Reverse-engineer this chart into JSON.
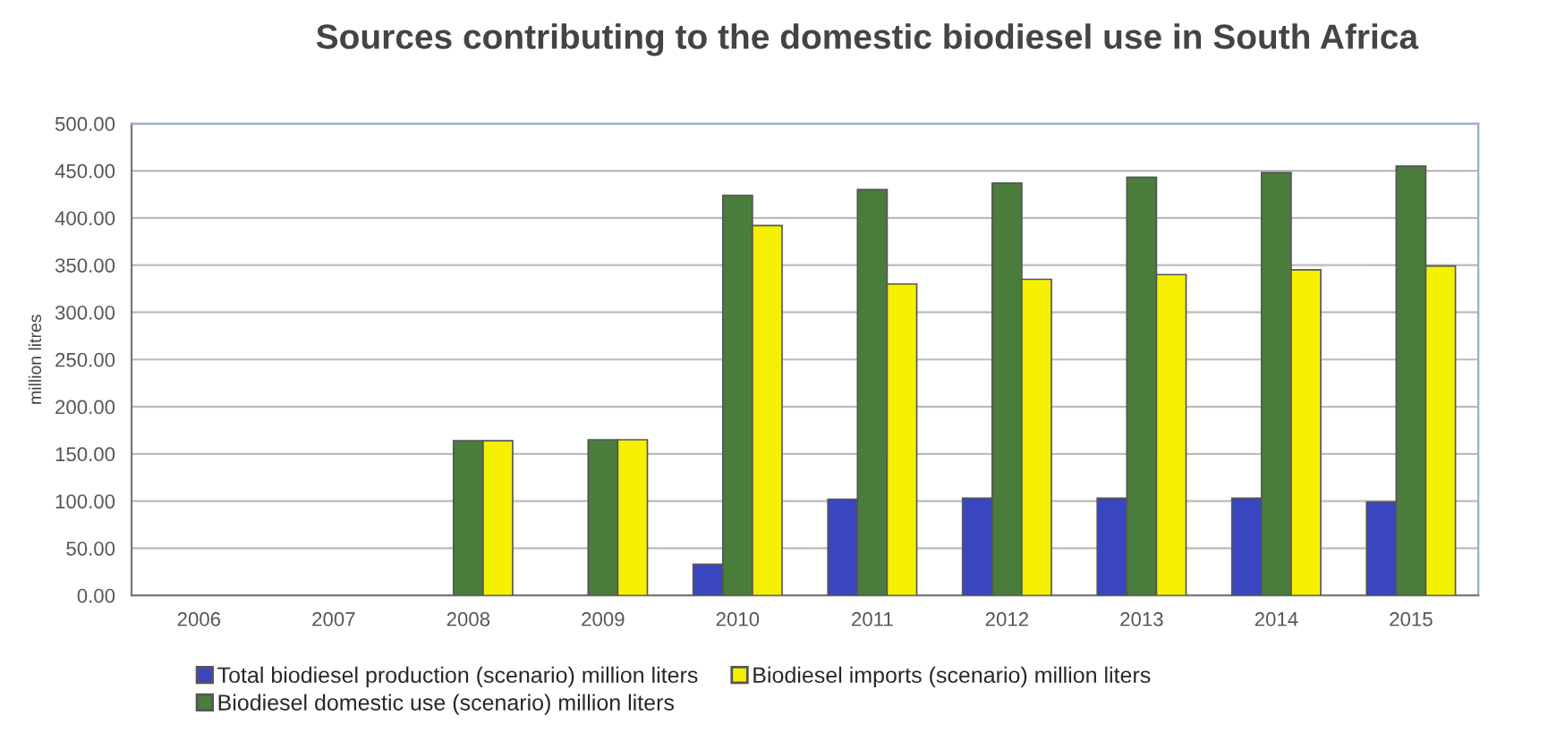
{
  "chart_data": {
    "type": "bar",
    "title": "Sources contributing to the domestic biodiesel use in South Africa",
    "ylabel": "million litres",
    "categories": [
      "2006",
      "2007",
      "2008",
      "2009",
      "2010",
      "2011",
      "2012",
      "2013",
      "2014",
      "2015"
    ],
    "series": [
      {
        "name": "Total biodiesel production (scenario) million liters",
        "color": "#3a46c0",
        "values": [
          null,
          null,
          null,
          null,
          33,
          102,
          103,
          103,
          103,
          99
        ]
      },
      {
        "name": "Biodiesel domestic use (scenario) million liters",
        "color": "#4a7c3c",
        "values": [
          null,
          null,
          164,
          165,
          424,
          430,
          437,
          443,
          448,
          455
        ]
      },
      {
        "name": "Biodiesel imports (scenario) million liters",
        "color": "#f5f000",
        "values": [
          null,
          null,
          164,
          165,
          392,
          330,
          335,
          340,
          345,
          349
        ]
      }
    ],
    "ylim": [
      0,
      500
    ],
    "yticks": [
      {
        "value": 0,
        "label": "0.00"
      },
      {
        "value": 50,
        "label": "50.00"
      },
      {
        "value": 100,
        "label": "100.00"
      },
      {
        "value": 150,
        "label": "150.00"
      },
      {
        "value": 200,
        "label": "200.00"
      },
      {
        "value": 250,
        "label": "250.00"
      },
      {
        "value": 300,
        "label": "300.00"
      },
      {
        "value": 350,
        "label": "350.00"
      },
      {
        "value": 400,
        "label": "400.00"
      },
      {
        "value": 450,
        "label": "450.00"
      },
      {
        "value": 500,
        "label": "500.00"
      }
    ],
    "grid": "y",
    "legend": "bottom"
  }
}
